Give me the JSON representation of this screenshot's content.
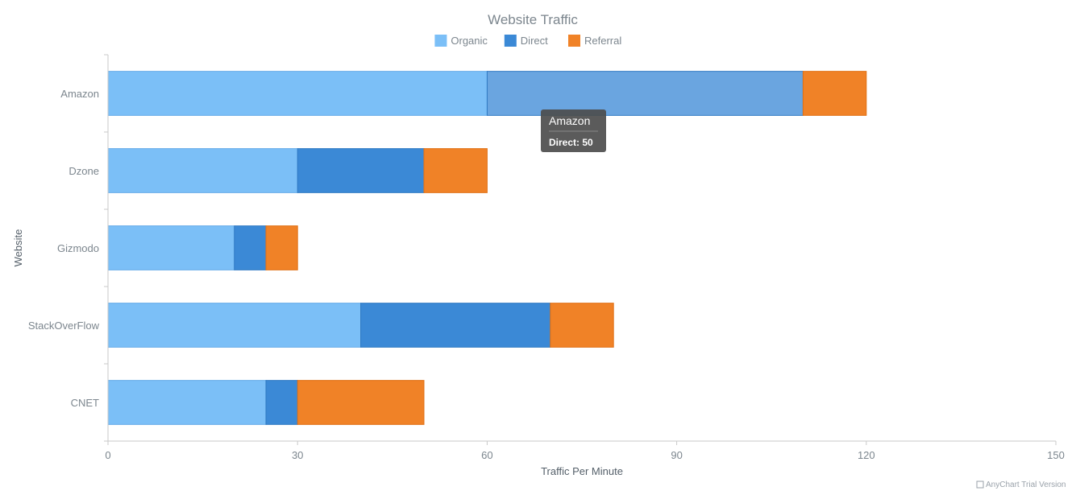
{
  "chart_data": {
    "type": "bar",
    "orientation": "horizontal",
    "stacked": true,
    "title": "Website Traffic",
    "xlabel": "Traffic Per Minute",
    "ylabel": "Website",
    "categories": [
      "Amazon",
      "Dzone",
      "Gizmodo",
      "StackOverFlow",
      "CNET"
    ],
    "series": [
      {
        "name": "Organic",
        "values": [
          60,
          30,
          20,
          40,
          25
        ],
        "color": "#7bbff7",
        "stroke": "#64abe8"
      },
      {
        "name": "Direct",
        "values": [
          50,
          20,
          5,
          30,
          5
        ],
        "color": "#3b89d6",
        "stroke": "#2f79c3",
        "hover_color": "#6aa5e0"
      },
      {
        "name": "Referral",
        "values": [
          10,
          10,
          5,
          10,
          20
        ],
        "color": "#f08227",
        "stroke": "#e07015"
      }
    ],
    "xlim": [
      0,
      150
    ],
    "xticks": [
      0,
      30,
      60,
      90,
      120,
      150
    ],
    "legend_position": "top-center",
    "grid": false
  },
  "tooltip": {
    "title": "Amazon",
    "body": "Direct: 50",
    "category": "Amazon",
    "series": "Direct"
  },
  "credit": "AnyChart Trial Version"
}
